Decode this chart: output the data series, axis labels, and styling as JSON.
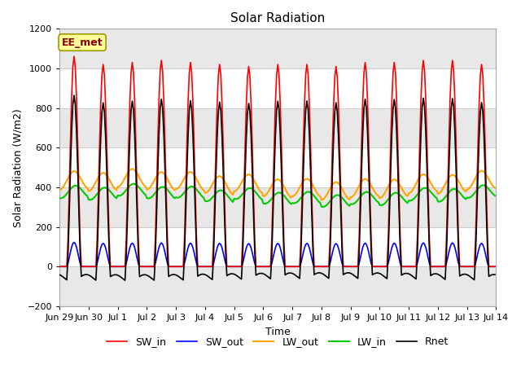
{
  "title": "Solar Radiation",
  "xlabel": "Time",
  "ylabel": "Solar Radiation (W/m2)",
  "ylim": [
    -200,
    1200
  ],
  "yticks": [
    -200,
    0,
    200,
    400,
    600,
    800,
    1000,
    1200
  ],
  "annotation_text": "EE_met",
  "annotation_bg": "#FFFF99",
  "annotation_border": "#999900",
  "plot_bg": "#FFFFFF",
  "grid_color": "#CCCCCC",
  "stripe_color": "#E8E8E8",
  "lines": {
    "SW_in": {
      "color": "#FF0000",
      "lw": 1.2
    },
    "SW_out": {
      "color": "#0000FF",
      "lw": 1.2
    },
    "LW_in": {
      "color": "#00CC00",
      "lw": 1.5
    },
    "LW_out": {
      "color": "#FFA500",
      "lw": 1.5
    },
    "Rnet": {
      "color": "#000000",
      "lw": 1.2
    }
  },
  "n_days": 15,
  "SW_in_peak": 1020,
  "LW_in_base": 360,
  "LW_in_amp": 30,
  "LW_out_base": 415,
  "LW_out_amp": 45,
  "font_family": "DejaVu Sans",
  "title_fontsize": 11,
  "label_fontsize": 9,
  "tick_fontsize": 8,
  "legend_fontsize": 9
}
